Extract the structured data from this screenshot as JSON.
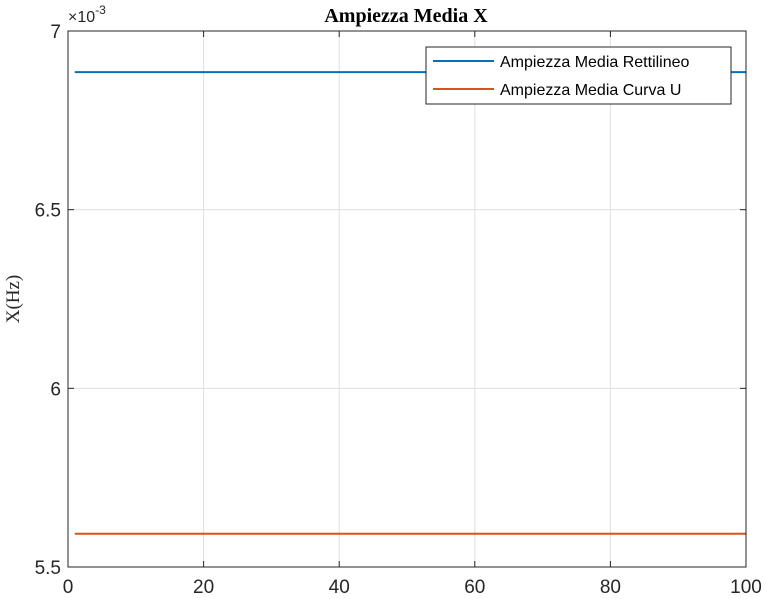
{
  "chart_data": {
    "type": "line",
    "title": "Ampiezza Media X",
    "ylabel": "X(Hz)",
    "xlabel": "",
    "xlim": [
      0,
      100
    ],
    "ylim": [
      5.5,
      7
    ],
    "y_exponent_base": "×10",
    "y_exponent": "-3",
    "xticks": [
      0,
      20,
      40,
      60,
      80,
      100
    ],
    "yticks": [
      5.5,
      6,
      6.5,
      7
    ],
    "xtick_labels": [
      "0",
      "20",
      "40",
      "60",
      "80",
      "100"
    ],
    "ytick_labels": [
      "5.5",
      "6",
      "6.5",
      "7"
    ],
    "grid": true,
    "legend_position": "top-right",
    "series": [
      {
        "name": "Ampiezza Media Rettilineo",
        "color": "#0072BD",
        "x": [
          1,
          100
        ],
        "y": [
          6.885,
          6.885
        ]
      },
      {
        "name": "Ampiezza Media Curva U",
        "color": "#D95319",
        "x": [
          1,
          100
        ],
        "y": [
          5.593,
          5.593
        ]
      }
    ]
  }
}
